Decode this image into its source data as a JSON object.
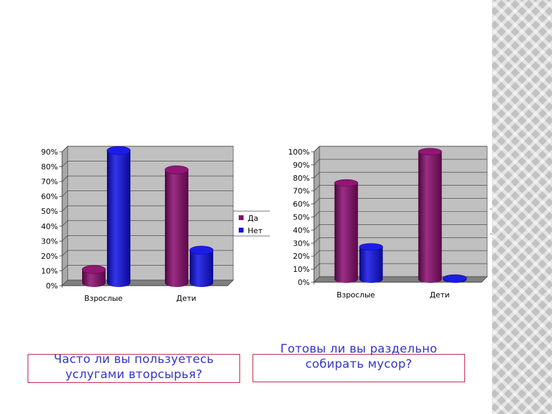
{
  "colors": {
    "yes": "#8b0a6e",
    "no": "#1010e8",
    "plot_bg": "#c0c0c0",
    "floor": "#808080",
    "caption_text": "#3333cc",
    "caption_border": "#c0264f"
  },
  "chart_data": [
    {
      "type": "bar",
      "style": "3d-cylinder",
      "categories": [
        "Взрослые",
        "Дети"
      ],
      "series": [
        {
          "name": "Да",
          "values": [
            9,
            76
          ]
        },
        {
          "name": "Нет",
          "values": [
            89,
            22
          ]
        }
      ],
      "y_ticks": [
        "0%",
        "10%",
        "20%",
        "30%",
        "40%",
        "50%",
        "60%",
        "70%",
        "80%",
        "90%"
      ],
      "ylim": [
        0,
        90
      ],
      "unit": "%",
      "legend_position": "right",
      "grid": true,
      "caption": "Часто ли вы пользуетесь\nуслугами вторсырья?"
    },
    {
      "type": "bar",
      "style": "3d-cylinder",
      "categories": [
        "Взрослые",
        "Дети"
      ],
      "series": [
        {
          "name": "Да",
          "values": [
            74,
            98
          ]
        },
        {
          "name": "Нет",
          "values": [
            25,
            1
          ]
        }
      ],
      "y_ticks": [
        "0%",
        "10%",
        "20%",
        "30%",
        "40%",
        "50%",
        "60%",
        "70%",
        "80%",
        "90%",
        "100%"
      ],
      "ylim": [
        0,
        100
      ],
      "unit": "%",
      "legend_position": "right",
      "grid": true,
      "caption": "Готовы ли вы раздельно\nсобирать мусор?"
    }
  ]
}
